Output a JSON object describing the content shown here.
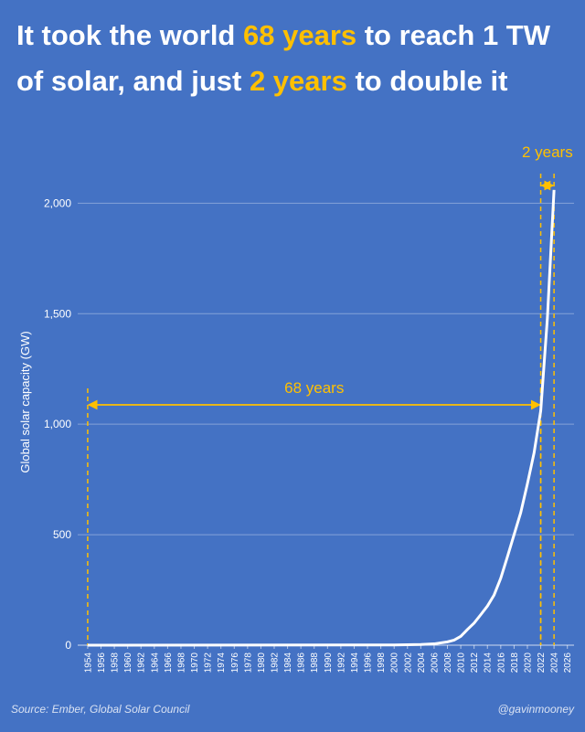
{
  "chart_data": {
    "type": "line",
    "title": "It took the world 68 years to reach 1 TW of solar, and just 2 years to double it",
    "title_highlights": [
      "68 years",
      "2 years"
    ],
    "y_label": "Global solar capacity (GW)",
    "x": [
      1954,
      2000,
      2004,
      2006,
      2008,
      2009,
      2010,
      2011,
      2012,
      2013,
      2014,
      2015,
      2016,
      2017,
      2018,
      2019,
      2020,
      2021,
      2022,
      2023,
      2024
    ],
    "values": [
      0,
      1,
      3,
      6,
      15,
      23,
      40,
      71,
      100,
      138,
      177,
      227,
      303,
      400,
      500,
      600,
      730,
      870,
      1060,
      1480,
      2060
    ],
    "color": "#ffffff",
    "xlim": [
      1952.5,
      2027
    ],
    "xticks": [
      1954,
      1956,
      1958,
      1960,
      1962,
      1964,
      1966,
      1968,
      1970,
      1972,
      1974,
      1976,
      1978,
      1980,
      1982,
      1984,
      1986,
      1988,
      1990,
      1992,
      1994,
      1996,
      1998,
      2000,
      2002,
      2004,
      2006,
      2008,
      2010,
      2012,
      2014,
      2016,
      2018,
      2020,
      2022,
      2024,
      2026
    ],
    "ylim": [
      0,
      2200
    ],
    "yticks": [
      0,
      500,
      {
        "value": 1000,
        "label": "1,000"
      },
      {
        "value": 1500,
        "label": "1,500"
      },
      {
        "value": 2000,
        "label": "2,000"
      }
    ],
    "grid": true,
    "annotations": [
      {
        "text": "68 years",
        "x": [
          1954,
          2022
        ]
      },
      {
        "text": "2 years",
        "x": [
          2022,
          2024
        ]
      }
    ],
    "annotation_color": "#ffc000",
    "source": "Source: Ember, Global Solar Council",
    "credit": "@gavinmooney"
  }
}
